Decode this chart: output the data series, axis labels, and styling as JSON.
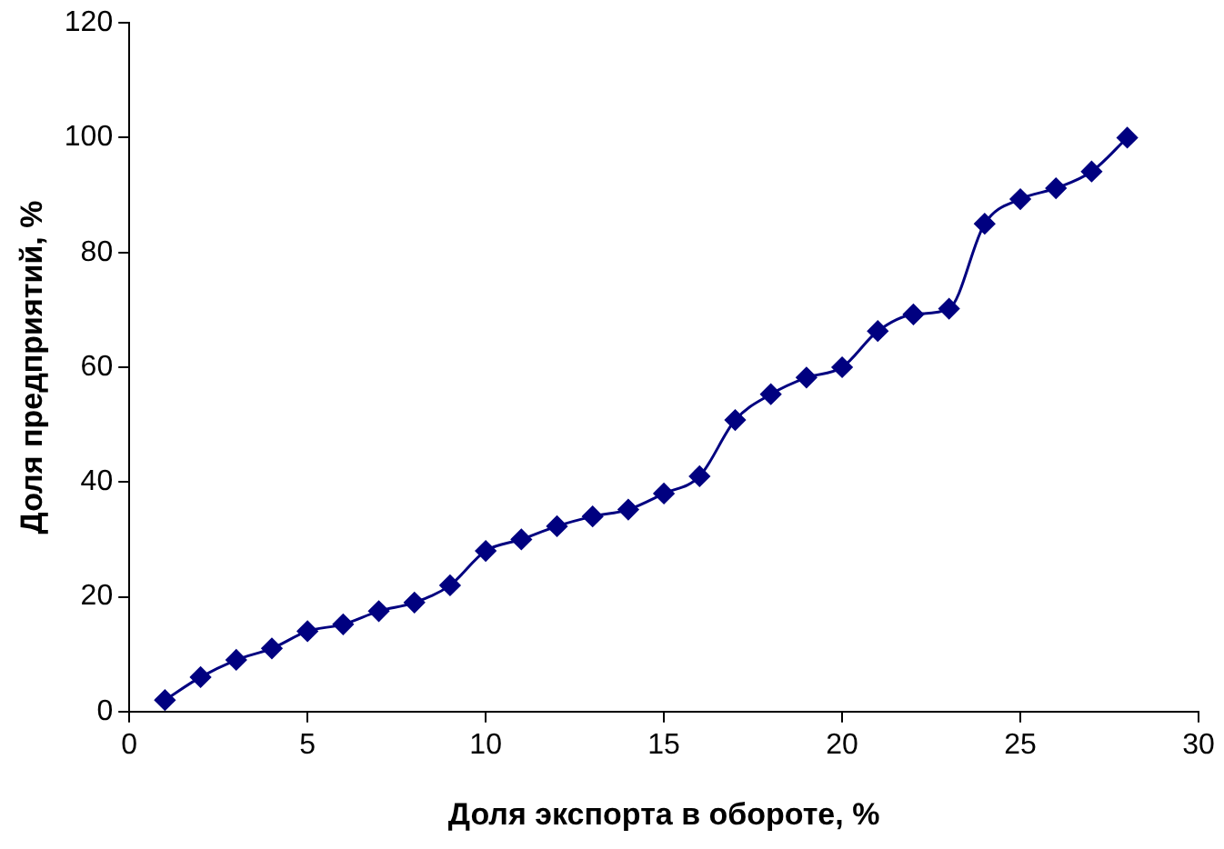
{
  "chart_data": {
    "type": "line",
    "xlabel": "Доля экспорта в обороте, %",
    "ylabel": "Доля предприятий, %",
    "x": [
      1,
      2,
      3,
      4,
      5,
      6,
      7,
      8,
      9,
      10,
      11,
      12,
      13,
      14,
      15,
      16,
      17,
      18,
      19,
      20,
      21,
      22,
      23,
      24,
      25,
      26,
      27,
      28
    ],
    "series": [
      {
        "color": "#000080",
        "values": [
          2,
          6,
          9,
          11,
          14,
          15.2,
          17.5,
          19,
          22,
          28,
          30,
          32.3,
          34,
          35.2,
          38,
          41,
          50.8,
          55.3,
          58.2,
          60,
          66.3,
          69.2,
          70.2,
          85,
          89.3,
          91.2,
          94.1,
          100
        ]
      }
    ],
    "xlim": [
      0,
      30
    ],
    "xticks": [
      0,
      5,
      10,
      15,
      20,
      25,
      30
    ],
    "ylim": [
      0,
      120
    ],
    "yticks": [
      0,
      20,
      40,
      60,
      80,
      100,
      120
    ],
    "grid": false,
    "legend": false,
    "marker": "diamond",
    "line_style": "solid"
  }
}
